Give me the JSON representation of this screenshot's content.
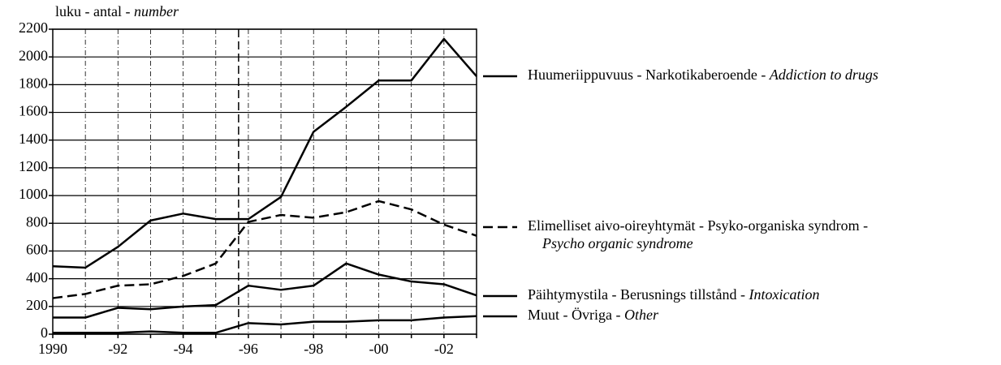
{
  "chart_data": {
    "type": "line",
    "ylabel": "luku - antal -",
    "ylabel_en": "number",
    "x": [
      1990,
      1991,
      1992,
      1993,
      1994,
      1995,
      1996,
      1997,
      1998,
      1999,
      2000,
      2001,
      2002,
      2003
    ],
    "xlim": [
      1990,
      2003
    ],
    "xticks": [
      {
        "value": 1990,
        "label": "1990"
      },
      {
        "value": 1992,
        "label": "-92"
      },
      {
        "value": 1994,
        "label": "-94"
      },
      {
        "value": 1996,
        "label": "-96"
      },
      {
        "value": 1998,
        "label": "-98"
      },
      {
        "value": 2000,
        "label": "-00"
      },
      {
        "value": 2002,
        "label": "-02"
      }
    ],
    "ylim": [
      0,
      2200
    ],
    "yticks": [
      0,
      200,
      400,
      600,
      800,
      1000,
      1200,
      1400,
      1600,
      1800,
      2000,
      2200
    ],
    "grid": true,
    "vline": 1995.7,
    "series": [
      {
        "name": "Huumeriippuvuus - Narkotikaberoende -",
        "name_en": "Addiction to drugs",
        "color": "#000000",
        "dash": false,
        "values": [
          490,
          480,
          630,
          820,
          870,
          830,
          830,
          990,
          1460,
          1640,
          1830,
          1830,
          2130,
          1860
        ]
      },
      {
        "name": "Elimelliset aivo-oireyhtymät - Psyko-organiska syndrom -",
        "name_en": "Psycho organic syndrome",
        "color": "#000000",
        "dash": true,
        "values": [
          260,
          290,
          350,
          360,
          420,
          510,
          810,
          860,
          840,
          880,
          960,
          900,
          790,
          710
        ]
      },
      {
        "name": "Päihtymystila - Berusnings tillstånd -",
        "name_en": "Intoxication",
        "color": "#000000",
        "dash": false,
        "values": [
          120,
          120,
          190,
          180,
          200,
          210,
          350,
          320,
          350,
          510,
          430,
          380,
          360,
          280
        ]
      },
      {
        "name": "Muut - Övriga -",
        "name_en": "Other",
        "color": "#000000",
        "dash": false,
        "values": [
          10,
          10,
          10,
          20,
          10,
          10,
          80,
          70,
          90,
          90,
          100,
          100,
          120,
          130
        ]
      }
    ]
  }
}
